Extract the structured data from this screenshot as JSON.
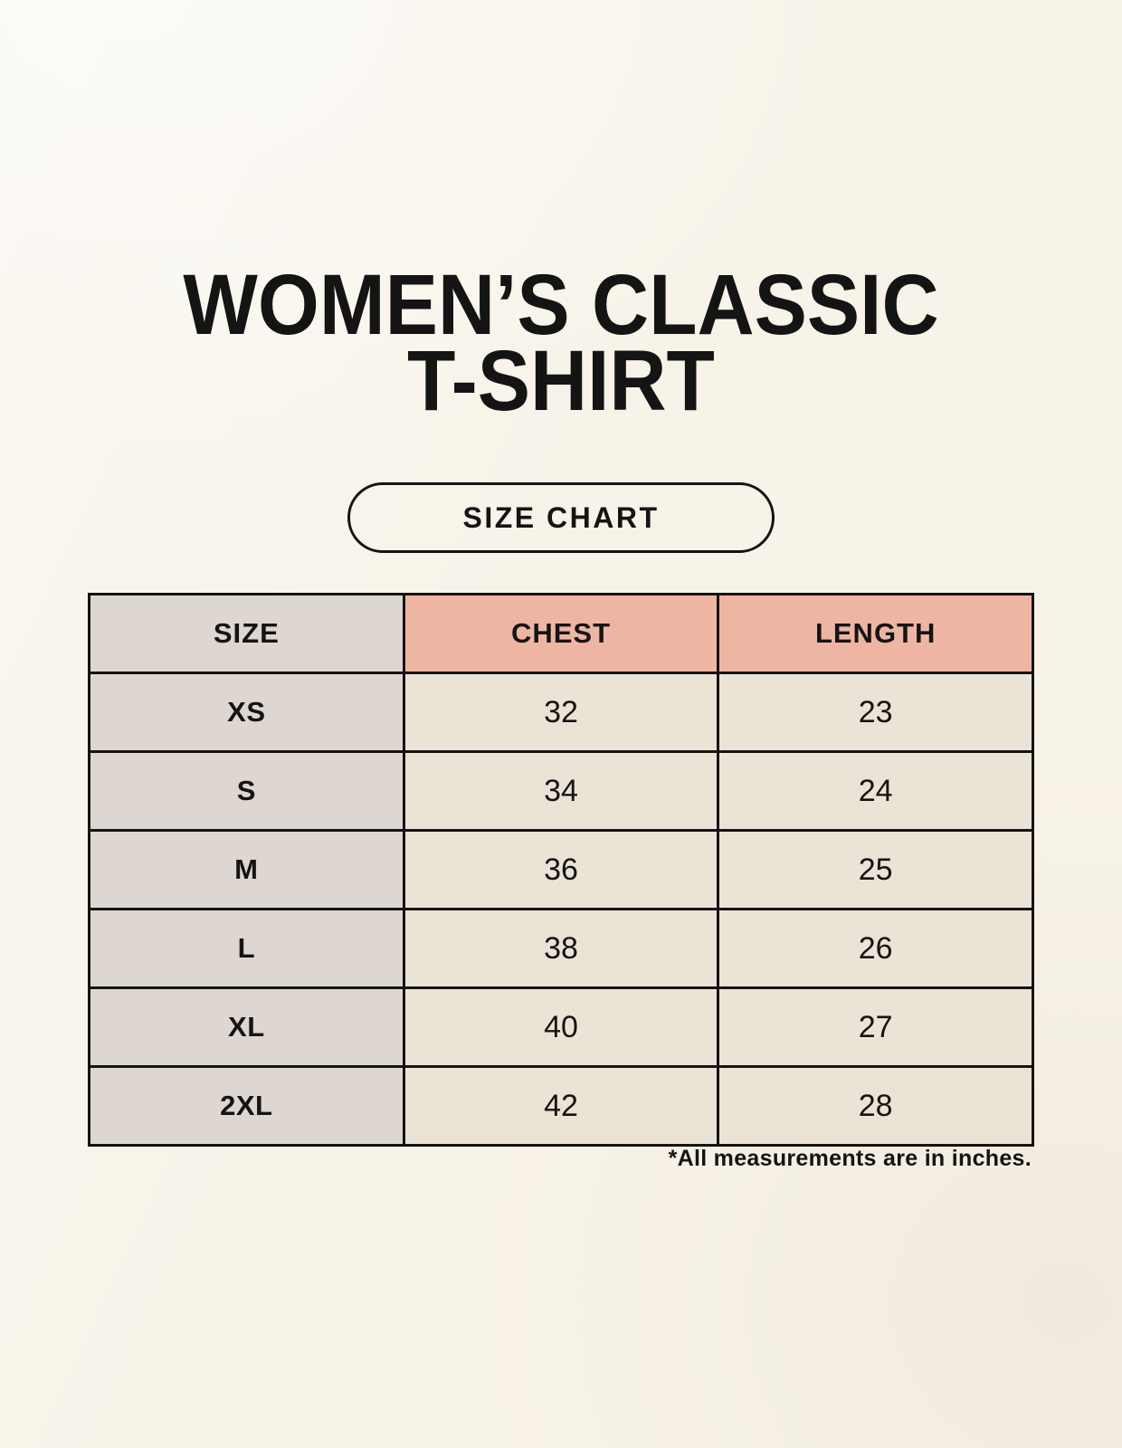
{
  "title": {
    "line1": "WOMEN’S CLASSIC",
    "line2": "T-SHIRT"
  },
  "size_chart_button": {
    "label": "SIZE CHART"
  },
  "chart_data": {
    "type": "table",
    "title": "WOMEN’S CLASSIC T-SHIRT",
    "subtitle": "SIZE CHART",
    "columns": [
      "SIZE",
      "CHEST",
      "LENGTH"
    ],
    "rows": [
      [
        "XS",
        "32",
        "23"
      ],
      [
        "S",
        "34",
        "24"
      ],
      [
        "M",
        "36",
        "25"
      ],
      [
        "L",
        "38",
        "26"
      ],
      [
        "XL",
        "40",
        "27"
      ],
      [
        "2XL",
        "42",
        "28"
      ]
    ],
    "footnote": "*All measurements are in inches.",
    "units": "inches"
  },
  "colors": {
    "bg": "#f8f3e9",
    "text": "#141414",
    "line": "#141414",
    "cell_grey": "#ddd6d1",
    "cell_pink": "#efb5a3",
    "cell_beige": "#ebe3d6"
  }
}
